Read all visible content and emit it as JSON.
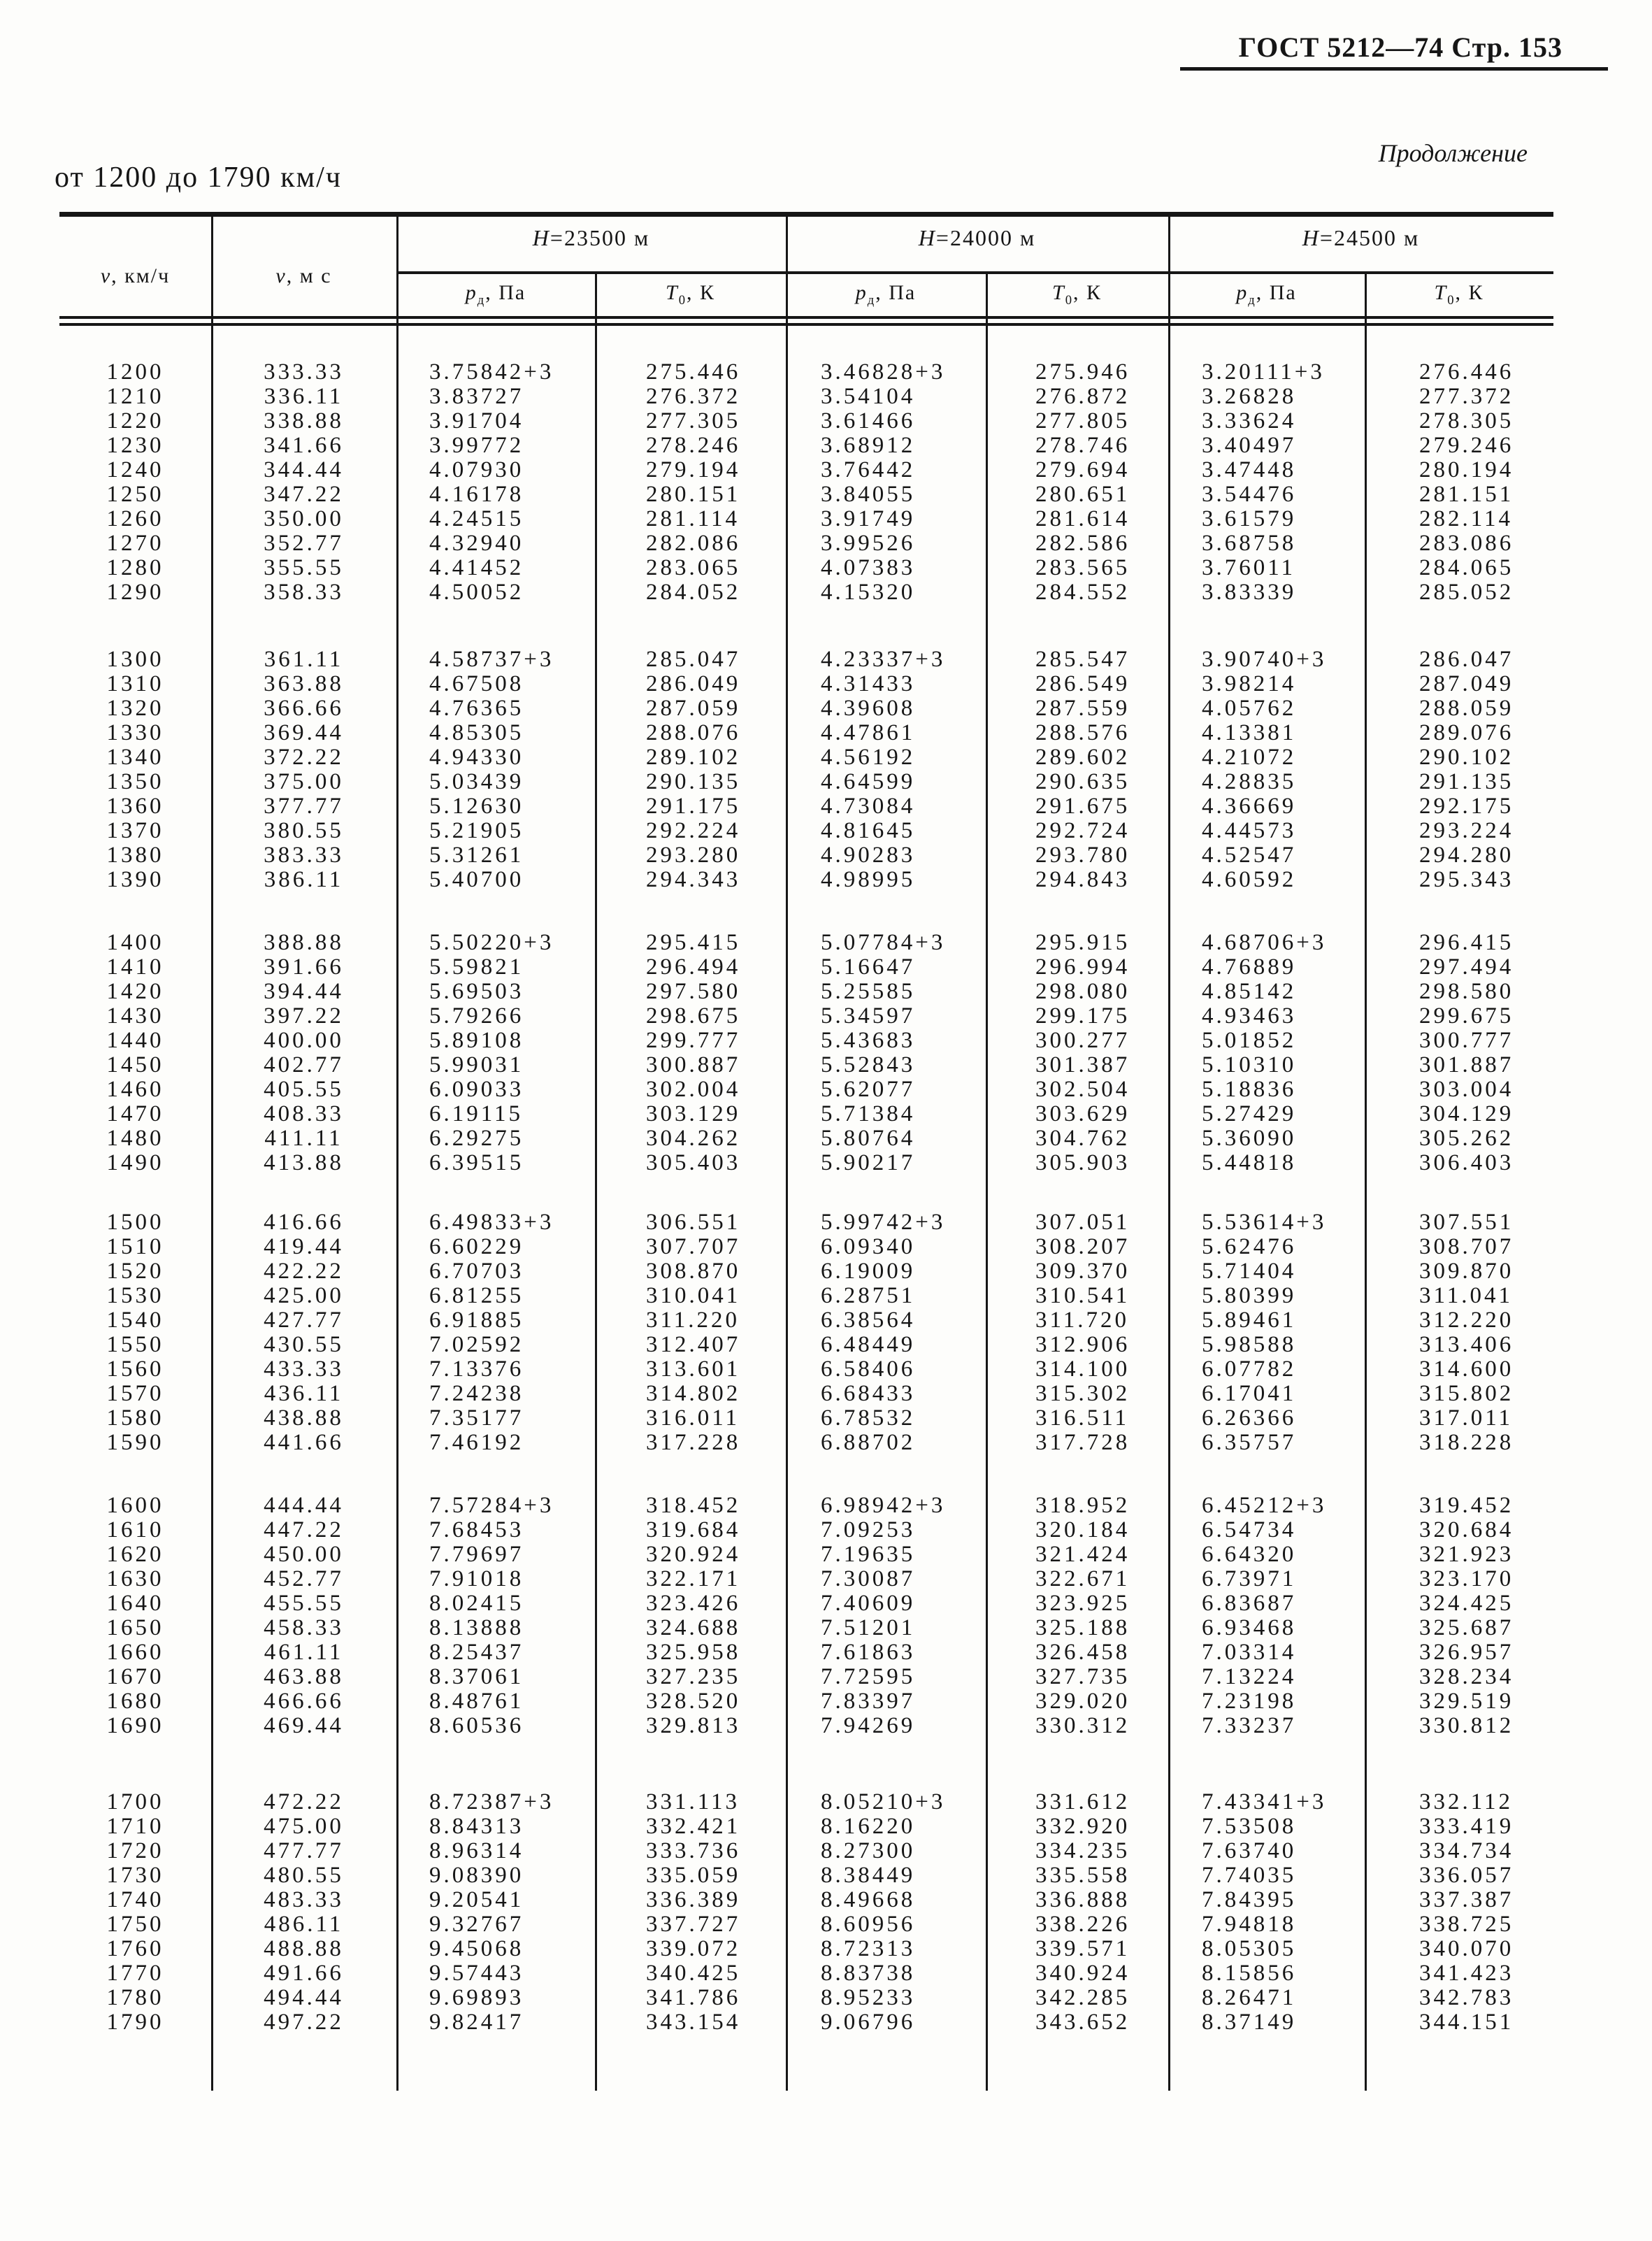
{
  "page": {
    "header_right": "ГОСТ 5212—74 Стр. 153",
    "continuation": "Продолжение",
    "range_title": "от 1200 до 1790 км/ч"
  },
  "table": {
    "v_kmh": {
      "sym": "v",
      "rest": ", км/ч"
    },
    "v_ms": {
      "sym": "v",
      "rest": ", м с"
    },
    "groups": [
      {
        "sym": "H",
        "rest": "=23500 м"
      },
      {
        "sym": "H",
        "rest": "=24000 м"
      },
      {
        "sym": "H",
        "rest": "=24500 м"
      }
    ],
    "p_label": {
      "sym": "p",
      "sub": "д",
      "rest": ", Па"
    },
    "t_label": {
      "sym": "T",
      "sub": "0",
      "rest": ", К"
    },
    "blocks": [
      [
        [
          "1200",
          "333.33",
          "3.75842+3",
          "275.446",
          "3.46828+3",
          "275.946",
          "3.20111+3",
          "276.446"
        ],
        [
          "1210",
          "336.11",
          "3.83727",
          "276.372",
          "3.54104",
          "276.872",
          "3.26828",
          "277.372"
        ],
        [
          "1220",
          "338.88",
          "3.91704",
          "277.305",
          "3.61466",
          "277.805",
          "3.33624",
          "278.305"
        ],
        [
          "1230",
          "341.66",
          "3.99772",
          "278.246",
          "3.68912",
          "278.746",
          "3.40497",
          "279.246"
        ],
        [
          "1240",
          "344.44",
          "4.07930",
          "279.194",
          "3.76442",
          "279.694",
          "3.47448",
          "280.194"
        ],
        [
          "1250",
          "347.22",
          "4.16178",
          "280.151",
          "3.84055",
          "280.651",
          "3.54476",
          "281.151"
        ],
        [
          "1260",
          "350.00",
          "4.24515",
          "281.114",
          "3.91749",
          "281.614",
          "3.61579",
          "282.114"
        ],
        [
          "1270",
          "352.77",
          "4.32940",
          "282.086",
          "3.99526",
          "282.586",
          "3.68758",
          "283.086"
        ],
        [
          "1280",
          "355.55",
          "4.41452",
          "283.065",
          "4.07383",
          "283.565",
          "3.76011",
          "284.065"
        ],
        [
          "1290",
          "358.33",
          "4.50052",
          "284.052",
          "4.15320",
          "284.552",
          "3.83339",
          "285.052"
        ]
      ],
      [
        [
          "1300",
          "361.11",
          "4.58737+3",
          "285.047",
          "4.23337+3",
          "285.547",
          "3.90740+3",
          "286.047"
        ],
        [
          "1310",
          "363.88",
          "4.67508",
          "286.049",
          "4.31433",
          "286.549",
          "3.98214",
          "287.049"
        ],
        [
          "1320",
          "366.66",
          "4.76365",
          "287.059",
          "4.39608",
          "287.559",
          "4.05762",
          "288.059"
        ],
        [
          "1330",
          "369.44",
          "4.85305",
          "288.076",
          "4.47861",
          "288.576",
          "4.13381",
          "289.076"
        ],
        [
          "1340",
          "372.22",
          "4.94330",
          "289.102",
          "4.56192",
          "289.602",
          "4.21072",
          "290.102"
        ],
        [
          "1350",
          "375.00",
          "5.03439",
          "290.135",
          "4.64599",
          "290.635",
          "4.28835",
          "291.135"
        ],
        [
          "1360",
          "377.77",
          "5.12630",
          "291.175",
          "4.73084",
          "291.675",
          "4.36669",
          "292.175"
        ],
        [
          "1370",
          "380.55",
          "5.21905",
          "292.224",
          "4.81645",
          "292.724",
          "4.44573",
          "293.224"
        ],
        [
          "1380",
          "383.33",
          "5.31261",
          "293.280",
          "4.90283",
          "293.780",
          "4.52547",
          "294.280"
        ],
        [
          "1390",
          "386.11",
          "5.40700",
          "294.343",
          "4.98995",
          "294.843",
          "4.60592",
          "295.343"
        ]
      ],
      [
        [
          "1400",
          "388.88",
          "5.50220+3",
          "295.415",
          "5.07784+3",
          "295.915",
          "4.68706+3",
          "296.415"
        ],
        [
          "1410",
          "391.66",
          "5.59821",
          "296.494",
          "5.16647",
          "296.994",
          "4.76889",
          "297.494"
        ],
        [
          "1420",
          "394.44",
          "5.69503",
          "297.580",
          "5.25585",
          "298.080",
          "4.85142",
          "298.580"
        ],
        [
          "1430",
          "397.22",
          "5.79266",
          "298.675",
          "5.34597",
          "299.175",
          "4.93463",
          "299.675"
        ],
        [
          "1440",
          "400.00",
          "5.89108",
          "299.777",
          "5.43683",
          "300.277",
          "5.01852",
          "300.777"
        ],
        [
          "1450",
          "402.77",
          "5.99031",
          "300.887",
          "5.52843",
          "301.387",
          "5.10310",
          "301.887"
        ],
        [
          "1460",
          "405.55",
          "6.09033",
          "302.004",
          "5.62077",
          "302.504",
          "5.18836",
          "303.004"
        ],
        [
          "1470",
          "408.33",
          "6.19115",
          "303.129",
          "5.71384",
          "303.629",
          "5.27429",
          "304.129"
        ],
        [
          "1480",
          "411.11",
          "6.29275",
          "304.262",
          "5.80764",
          "304.762",
          "5.36090",
          "305.262"
        ],
        [
          "1490",
          "413.88",
          "6.39515",
          "305.403",
          "5.90217",
          "305.903",
          "5.44818",
          "306.403"
        ]
      ],
      [
        [
          "1500",
          "416.66",
          "6.49833+3",
          "306.551",
          "5.99742+3",
          "307.051",
          "5.53614+3",
          "307.551"
        ],
        [
          "1510",
          "419.44",
          "6.60229",
          "307.707",
          "6.09340",
          "308.207",
          "5.62476",
          "308.707"
        ],
        [
          "1520",
          "422.22",
          "6.70703",
          "308.870",
          "6.19009",
          "309.370",
          "5.71404",
          "309.870"
        ],
        [
          "1530",
          "425.00",
          "6.81255",
          "310.041",
          "6.28751",
          "310.541",
          "5.80399",
          "311.041"
        ],
        [
          "1540",
          "427.77",
          "6.91885",
          "311.220",
          "6.38564",
          "311.720",
          "5.89461",
          "312.220"
        ],
        [
          "1550",
          "430.55",
          "7.02592",
          "312.407",
          "6.48449",
          "312.906",
          "5.98588",
          "313.406"
        ],
        [
          "1560",
          "433.33",
          "7.13376",
          "313.601",
          "6.58406",
          "314.100",
          "6.07782",
          "314.600"
        ],
        [
          "1570",
          "436.11",
          "7.24238",
          "314.802",
          "6.68433",
          "315.302",
          "6.17041",
          "315.802"
        ],
        [
          "1580",
          "438.88",
          "7.35177",
          "316.011",
          "6.78532",
          "316.511",
          "6.26366",
          "317.011"
        ],
        [
          "1590",
          "441.66",
          "7.46192",
          "317.228",
          "6.88702",
          "317.728",
          "6.35757",
          "318.228"
        ]
      ],
      [
        [
          "1600",
          "444.44",
          "7.57284+3",
          "318.452",
          "6.98942+3",
          "318.952",
          "6.45212+3",
          "319.452"
        ],
        [
          "1610",
          "447.22",
          "7.68453",
          "319.684",
          "7.09253",
          "320.184",
          "6.54734",
          "320.684"
        ],
        [
          "1620",
          "450.00",
          "7.79697",
          "320.924",
          "7.19635",
          "321.424",
          "6.64320",
          "321.923"
        ],
        [
          "1630",
          "452.77",
          "7.91018",
          "322.171",
          "7.30087",
          "322.671",
          "6.73971",
          "323.170"
        ],
        [
          "1640",
          "455.55",
          "8.02415",
          "323.426",
          "7.40609",
          "323.925",
          "6.83687",
          "324.425"
        ],
        [
          "1650",
          "458.33",
          "8.13888",
          "324.688",
          "7.51201",
          "325.188",
          "6.93468",
          "325.687"
        ],
        [
          "1660",
          "461.11",
          "8.25437",
          "325.958",
          "7.61863",
          "326.458",
          "7.03314",
          "326.957"
        ],
        [
          "1670",
          "463.88",
          "8.37061",
          "327.235",
          "7.72595",
          "327.735",
          "7.13224",
          "328.234"
        ],
        [
          "1680",
          "466.66",
          "8.48761",
          "328.520",
          "7.83397",
          "329.020",
          "7.23198",
          "329.519"
        ],
        [
          "1690",
          "469.44",
          "8.60536",
          "329.813",
          "7.94269",
          "330.312",
          "7.33237",
          "330.812"
        ]
      ],
      [
        [
          "1700",
          "472.22",
          "8.72387+3",
          "331.113",
          "8.05210+3",
          "331.612",
          "7.43341+3",
          "332.112"
        ],
        [
          "1710",
          "475.00",
          "8.84313",
          "332.421",
          "8.16220",
          "332.920",
          "7.53508",
          "333.419"
        ],
        [
          "1720",
          "477.77",
          "8.96314",
          "333.736",
          "8.27300",
          "334.235",
          "7.63740",
          "334.734"
        ],
        [
          "1730",
          "480.55",
          "9.08390",
          "335.059",
          "8.38449",
          "335.558",
          "7.74035",
          "336.057"
        ],
        [
          "1740",
          "483.33",
          "9.20541",
          "336.389",
          "8.49668",
          "336.888",
          "7.84395",
          "337.387"
        ],
        [
          "1750",
          "486.11",
          "9.32767",
          "337.727",
          "8.60956",
          "338.226",
          "7.94818",
          "338.725"
        ],
        [
          "1760",
          "488.88",
          "9.45068",
          "339.072",
          "8.72313",
          "339.571",
          "8.05305",
          "340.070"
        ],
        [
          "1770",
          "491.66",
          "9.57443",
          "340.425",
          "8.83738",
          "340.924",
          "8.15856",
          "341.423"
        ],
        [
          "1780",
          "494.44",
          "9.69893",
          "341.786",
          "8.95233",
          "342.285",
          "8.26471",
          "342.783"
        ],
        [
          "1790",
          "497.22",
          "9.82417",
          "343.154",
          "9.06796",
          "343.652",
          "8.37149",
          "344.151"
        ]
      ]
    ]
  }
}
